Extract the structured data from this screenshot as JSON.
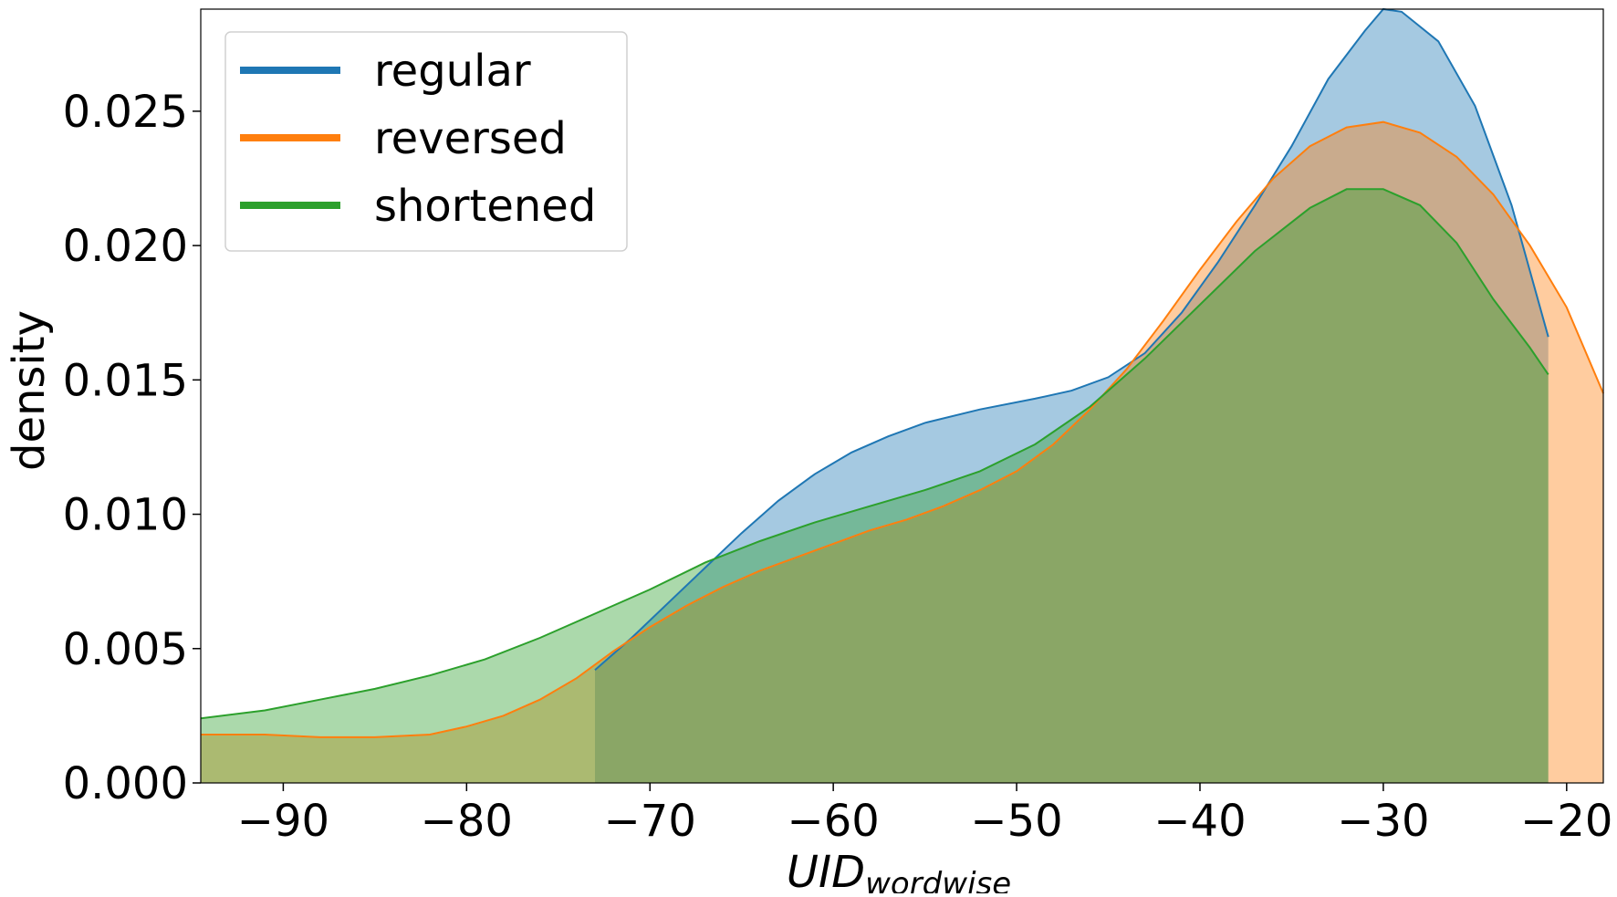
{
  "chart_data": {
    "type": "area",
    "xlabel": "UID",
    "xlabel_subscript": "wordwise",
    "ylabel": "density",
    "xlim": [
      -94.5,
      -18
    ],
    "ylim": [
      0,
      0.0288
    ],
    "xticks": [
      -90,
      -80,
      -70,
      -60,
      -50,
      -40,
      -30,
      -20
    ],
    "xtick_labels": [
      "−90",
      "−80",
      "−70",
      "−60",
      "−50",
      "−40",
      "−30",
      "−20"
    ],
    "yticks": [
      0.0,
      0.005,
      0.01,
      0.015,
      0.02,
      0.025
    ],
    "ytick_labels": [
      "0.000",
      "0.005",
      "0.010",
      "0.015",
      "0.020",
      "0.025"
    ],
    "grid": false,
    "legend_position": "upper-left",
    "series": [
      {
        "name": "regular",
        "color": "#1f77b4",
        "points": [
          [
            -73.0,
            0.0042
          ],
          [
            -71.0,
            0.0054
          ],
          [
            -69.0,
            0.0067
          ],
          [
            -67.0,
            0.008
          ],
          [
            -65.0,
            0.0093
          ],
          [
            -63.0,
            0.0105
          ],
          [
            -61.0,
            0.0115
          ],
          [
            -59.0,
            0.0123
          ],
          [
            -57.0,
            0.0129
          ],
          [
            -55.0,
            0.0134
          ],
          [
            -52.0,
            0.0139
          ],
          [
            -49.0,
            0.0143
          ],
          [
            -47.0,
            0.0146
          ],
          [
            -45.0,
            0.0151
          ],
          [
            -43.0,
            0.016
          ],
          [
            -41.0,
            0.0175
          ],
          [
            -39.0,
            0.0194
          ],
          [
            -37.0,
            0.0215
          ],
          [
            -35.0,
            0.0237
          ],
          [
            -33.0,
            0.0262
          ],
          [
            -31.0,
            0.028
          ],
          [
            -30.0,
            0.0288
          ],
          [
            -29.0,
            0.0287
          ],
          [
            -27.0,
            0.0276
          ],
          [
            -25.0,
            0.0252
          ],
          [
            -23.0,
            0.0215
          ],
          [
            -21.0,
            0.0166
          ]
        ]
      },
      {
        "name": "reversed",
        "color": "#ff7f0e",
        "points": [
          [
            -94.5,
            0.0018
          ],
          [
            -91.0,
            0.0018
          ],
          [
            -88.0,
            0.0017
          ],
          [
            -85.0,
            0.0017
          ],
          [
            -82.0,
            0.0018
          ],
          [
            -80.0,
            0.0021
          ],
          [
            -78.0,
            0.0025
          ],
          [
            -76.0,
            0.0031
          ],
          [
            -74.0,
            0.0039
          ],
          [
            -72.0,
            0.0049
          ],
          [
            -70.0,
            0.0058
          ],
          [
            -68.0,
            0.0066
          ],
          [
            -66.0,
            0.0073
          ],
          [
            -64.0,
            0.0079
          ],
          [
            -62.0,
            0.0084
          ],
          [
            -60.0,
            0.0089
          ],
          [
            -58.0,
            0.0094
          ],
          [
            -56.0,
            0.0098
          ],
          [
            -54.0,
            0.0103
          ],
          [
            -52.0,
            0.0109
          ],
          [
            -50.0,
            0.0116
          ],
          [
            -48.0,
            0.0126
          ],
          [
            -46.0,
            0.0139
          ],
          [
            -44.0,
            0.0154
          ],
          [
            -42.0,
            0.0172
          ],
          [
            -40.0,
            0.0191
          ],
          [
            -38.0,
            0.0209
          ],
          [
            -36.0,
            0.0225
          ],
          [
            -34.0,
            0.0237
          ],
          [
            -32.0,
            0.0244
          ],
          [
            -30.0,
            0.0246
          ],
          [
            -28.0,
            0.0242
          ],
          [
            -26.0,
            0.0233
          ],
          [
            -24.0,
            0.0219
          ],
          [
            -22.0,
            0.02
          ],
          [
            -20.0,
            0.0177
          ],
          [
            -18.0,
            0.0145
          ]
        ]
      },
      {
        "name": "shortened",
        "color": "#2ca02c",
        "points": [
          [
            -94.5,
            0.0024
          ],
          [
            -91.0,
            0.0027
          ],
          [
            -88.0,
            0.0031
          ],
          [
            -85.0,
            0.0035
          ],
          [
            -82.0,
            0.004
          ],
          [
            -79.0,
            0.0046
          ],
          [
            -76.0,
            0.0054
          ],
          [
            -73.0,
            0.0063
          ],
          [
            -70.0,
            0.0072
          ],
          [
            -67.0,
            0.0082
          ],
          [
            -64.0,
            0.009
          ],
          [
            -61.0,
            0.0097
          ],
          [
            -58.0,
            0.0103
          ],
          [
            -55.0,
            0.0109
          ],
          [
            -52.0,
            0.0116
          ],
          [
            -49.0,
            0.0126
          ],
          [
            -46.0,
            0.014
          ],
          [
            -43.0,
            0.0158
          ],
          [
            -40.0,
            0.0178
          ],
          [
            -37.0,
            0.0198
          ],
          [
            -34.0,
            0.0214
          ],
          [
            -32.0,
            0.0221
          ],
          [
            -30.0,
            0.0221
          ],
          [
            -28.0,
            0.0215
          ],
          [
            -26.0,
            0.0201
          ],
          [
            -24.0,
            0.018
          ],
          [
            -22.0,
            0.0162
          ],
          [
            -21.0,
            0.0152
          ]
        ]
      }
    ]
  }
}
